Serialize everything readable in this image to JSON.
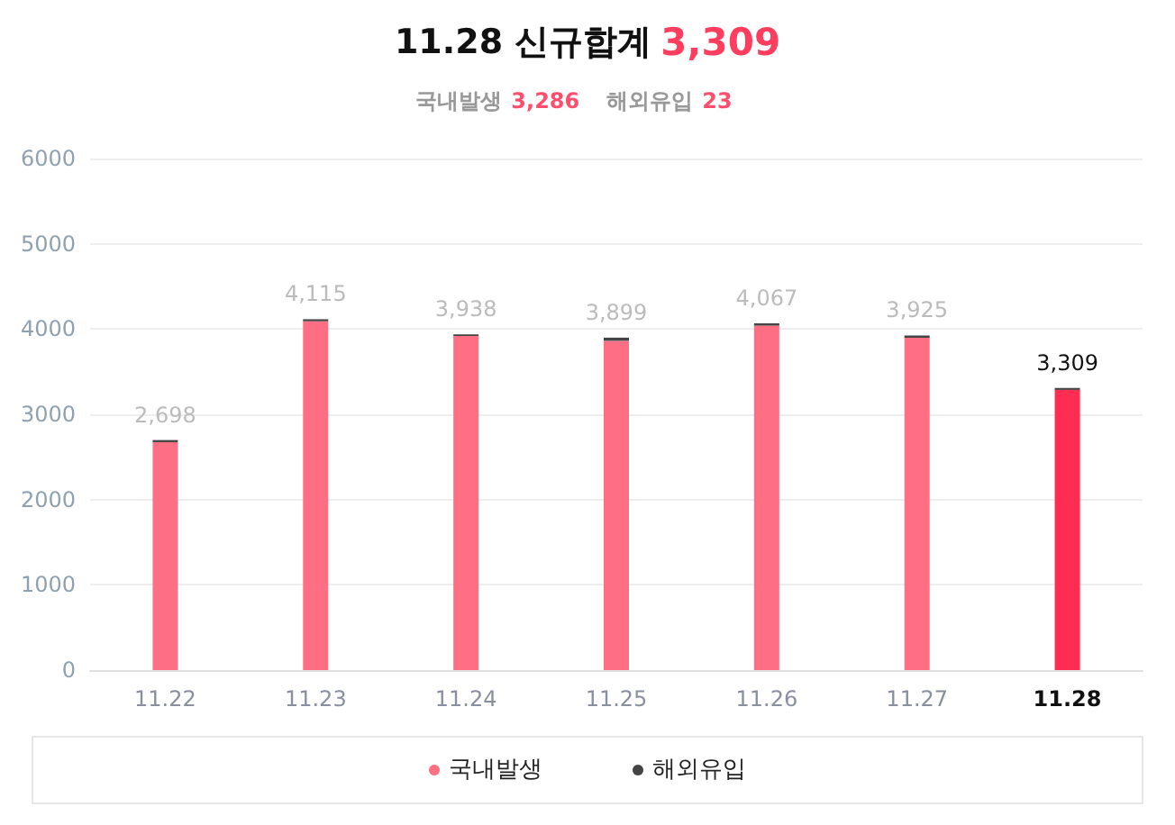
{
  "chart_data": {
    "type": "bar",
    "title": "11.28 신규합계 3,309",
    "subtitle": "국내발생 3,286 해외유입 23",
    "categories": [
      "11.22",
      "11.23",
      "11.24",
      "11.25",
      "11.26",
      "11.27",
      "11.28"
    ],
    "stacked": true,
    "series": [
      {
        "name": "국내발생",
        "color": "#ff6f84",
        "colors": [
          "#ff6f84",
          "#ff6f84",
          "#ff6f84",
          "#ff6f84",
          "#ff6f84",
          "#ff6f84",
          "#ff2d52"
        ],
        "values": [
          2673,
          4091,
          3919,
          3862,
          4040,
          3899,
          3286
        ]
      },
      {
        "name": "해외유입",
        "color": "#444444",
        "values": [
          25,
          24,
          19,
          37,
          27,
          26,
          23
        ]
      }
    ],
    "totals": [
      "2,698",
      "4,115",
      "3,938",
      "3,899",
      "4,067",
      "3,925",
      "3,309"
    ],
    "ylim": [
      0,
      6000
    ],
    "yticks": [
      0,
      1000,
      2000,
      3000,
      4000,
      5000,
      6000
    ],
    "grid": "y",
    "legend": "bottom"
  }
}
